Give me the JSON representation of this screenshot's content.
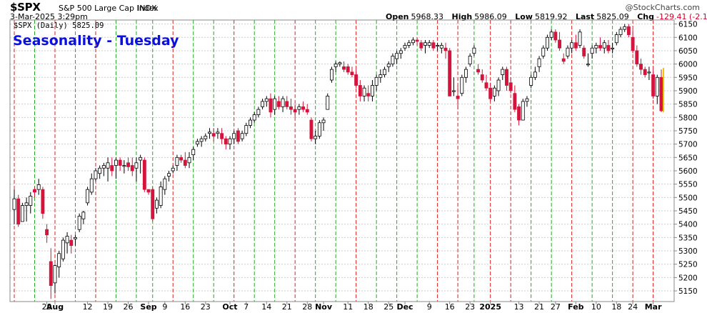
{
  "header": {
    "symbol": "$SPX",
    "full_name": "S&P 500 Large Cap Index",
    "exchange": "INDX",
    "brand": "@StockCharts.com",
    "date": "3-Mar-2025 3:29pm",
    "ohlc": {
      "open_label": "Open",
      "open": "5968.33",
      "high_label": "High",
      "high": "5986.09",
      "low_label": "Low",
      "low": "5819.92",
      "last_label": "Last",
      "last": "5825.09",
      "chg_label": "Chg",
      "chg": "-129.41 (-2.17%)",
      "chg_arrow": "▼"
    }
  },
  "overlay": {
    "title": "Seasonality - Tuesday",
    "title_color": "#0a10e0",
    "legend": "$SPX (Daily) 5825.09"
  },
  "colors": {
    "up_candle_fill": "#ffffff",
    "up_candle_stroke": "#000000",
    "down_candle_fill": "#d4143c",
    "tuesday_up_line": "#22aa22",
    "tuesday_down_line": "#d42020",
    "grid": "#cfcfcf",
    "last_price_highlight": "#f4c400"
  },
  "chart_data": {
    "type": "candlestick",
    "symbol": "$SPX",
    "period": "Daily",
    "ylim": [
      5110,
      6165
    ],
    "y_ticks": [
      5150,
      5200,
      5250,
      5300,
      5350,
      5400,
      5450,
      5500,
      5550,
      5600,
      5650,
      5700,
      5750,
      5800,
      5850,
      5900,
      5950,
      6000,
      6050,
      6100,
      6150
    ],
    "x_labels": [
      {
        "label": "29",
        "idx": 8
      },
      {
        "label": "Aug",
        "idx": 10,
        "bold": true
      },
      {
        "label": "12",
        "idx": 18
      },
      {
        "label": "19",
        "idx": 23
      },
      {
        "label": "26",
        "idx": 28
      },
      {
        "label": "Sep",
        "idx": 33,
        "bold": true
      },
      {
        "label": "9",
        "idx": 37
      },
      {
        "label": "16",
        "idx": 42
      },
      {
        "label": "23",
        "idx": 47
      },
      {
        "label": "Oct",
        "idx": 53,
        "bold": true
      },
      {
        "label": "7",
        "idx": 57
      },
      {
        "label": "14",
        "idx": 62
      },
      {
        "label": "21",
        "idx": 67
      },
      {
        "label": "28",
        "idx": 72
      },
      {
        "label": "Nov",
        "idx": 76,
        "bold": true
      },
      {
        "label": "11",
        "idx": 82
      },
      {
        "label": "18",
        "idx": 87
      },
      {
        "label": "25",
        "idx": 92
      },
      {
        "label": "Dec",
        "idx": 96,
        "bold": true
      },
      {
        "label": "9",
        "idx": 102
      },
      {
        "label": "16",
        "idx": 107
      },
      {
        "label": "23",
        "idx": 112
      },
      {
        "label": "2025",
        "idx": 117,
        "bold": true
      },
      {
        "label": "13",
        "idx": 124
      },
      {
        "label": "21",
        "idx": 129
      },
      {
        "label": "27",
        "idx": 133
      },
      {
        "label": "Feb",
        "idx": 138,
        "bold": true
      },
      {
        "label": "10",
        "idx": 143
      },
      {
        "label": "18",
        "idx": 148
      },
      {
        "label": "24",
        "idx": 152
      },
      {
        "label": "Mar",
        "idx": 157,
        "bold": true
      }
    ],
    "tuesday_lines": [
      {
        "idx": 0,
        "dir": "down"
      },
      {
        "idx": 5,
        "dir": "up"
      },
      {
        "idx": 10,
        "dir": "down"
      },
      {
        "idx": 15,
        "dir": "up"
      },
      {
        "idx": 20,
        "dir": "down"
      },
      {
        "idx": 25,
        "dir": "up"
      },
      {
        "idx": 30,
        "dir": "up"
      },
      {
        "idx": 34,
        "dir": "up"
      },
      {
        "idx": 39,
        "dir": "down"
      },
      {
        "idx": 44,
        "dir": "up"
      },
      {
        "idx": 49,
        "dir": "up"
      },
      {
        "idx": 54,
        "dir": "down"
      },
      {
        "idx": 59,
        "dir": "up"
      },
      {
        "idx": 64,
        "dir": "up"
      },
      {
        "idx": 69,
        "dir": "down"
      },
      {
        "idx": 74,
        "dir": "up"
      },
      {
        "idx": 79,
        "dir": "up"
      },
      {
        "idx": 84,
        "dir": "down"
      },
      {
        "idx": 89,
        "dir": "up"
      },
      {
        "idx": 94,
        "dir": "up"
      },
      {
        "idx": 99,
        "dir": "up"
      },
      {
        "idx": 104,
        "dir": "down"
      },
      {
        "idx": 109,
        "dir": "down"
      },
      {
        "idx": 113,
        "dir": "up"
      },
      {
        "idx": 117,
        "dir": "down"
      },
      {
        "idx": 122,
        "dir": "down"
      },
      {
        "idx": 127,
        "dir": "up"
      },
      {
        "idx": 132,
        "dir": "up"
      },
      {
        "idx": 137,
        "dir": "down"
      },
      {
        "idx": 142,
        "dir": "up"
      },
      {
        "idx": 147,
        "dir": "up"
      },
      {
        "idx": 152,
        "dir": "down"
      },
      {
        "idx": 157,
        "dir": "down"
      }
    ],
    "candles_ohlc": [
      [
        5455,
        5530,
        5400,
        5495
      ],
      [
        5495,
        5510,
        5390,
        5400
      ],
      [
        5410,
        5480,
        5420,
        5470
      ],
      [
        5470,
        5500,
        5410,
        5480
      ],
      [
        5470,
        5520,
        5440,
        5505
      ],
      [
        5530,
        5540,
        5500,
        5520
      ],
      [
        5530,
        5570,
        5510,
        5548
      ],
      [
        5530,
        5540,
        5420,
        5440
      ],
      [
        5380,
        5400,
        5330,
        5360
      ],
      [
        5260,
        5310,
        5120,
        5170
      ],
      [
        5180,
        5250,
        5140,
        5245
      ],
      [
        5240,
        5300,
        5200,
        5290
      ],
      [
        5270,
        5350,
        5260,
        5340
      ],
      [
        5330,
        5370,
        5290,
        5355
      ],
      [
        5340,
        5360,
        5290,
        5320
      ],
      [
        5345,
        5360,
        5320,
        5350
      ],
      [
        5380,
        5440,
        5370,
        5430
      ],
      [
        5420,
        5450,
        5400,
        5445
      ],
      [
        5480,
        5540,
        5470,
        5530
      ],
      [
        5520,
        5590,
        5510,
        5570
      ],
      [
        5570,
        5610,
        5560,
        5600
      ],
      [
        5590,
        5620,
        5570,
        5610
      ],
      [
        5610,
        5630,
        5580,
        5620
      ],
      [
        5610,
        5650,
        5560,
        5630
      ],
      [
        5620,
        5650,
        5580,
        5600
      ],
      [
        5620,
        5650,
        5570,
        5640
      ],
      [
        5640,
        5650,
        5600,
        5620
      ],
      [
        5620,
        5640,
        5590,
        5620
      ],
      [
        5630,
        5650,
        5600,
        5615
      ],
      [
        5620,
        5650,
        5580,
        5600
      ],
      [
        5610,
        5650,
        5560,
        5630
      ],
      [
        5640,
        5660,
        5590,
        5650
      ],
      [
        5640,
        5650,
        5520,
        5530
      ],
      [
        5530,
        5530,
        5510,
        5520
      ],
      [
        5530,
        5540,
        5410,
        5420
      ],
      [
        5460,
        5500,
        5440,
        5490
      ],
      [
        5470,
        5560,
        5460,
        5540
      ],
      [
        5530,
        5580,
        5510,
        5570
      ],
      [
        5580,
        5600,
        5560,
        5590
      ],
      [
        5600,
        5620,
        5590,
        5610
      ],
      [
        5620,
        5660,
        5600,
        5650
      ],
      [
        5650,
        5660,
        5630,
        5640
      ],
      [
        5640,
        5670,
        5610,
        5620
      ],
      [
        5630,
        5670,
        5610,
        5650
      ],
      [
        5660,
        5690,
        5640,
        5680
      ],
      [
        5700,
        5720,
        5690,
        5710
      ],
      [
        5710,
        5730,
        5690,
        5720
      ],
      [
        5720,
        5740,
        5710,
        5730
      ],
      [
        5740,
        5760,
        5720,
        5745
      ],
      [
        5740,
        5760,
        5710,
        5730
      ],
      [
        5740,
        5760,
        5720,
        5745
      ],
      [
        5740,
        5760,
        5700,
        5720
      ],
      [
        5720,
        5730,
        5680,
        5700
      ],
      [
        5700,
        5730,
        5680,
        5720
      ],
      [
        5720,
        5750,
        5700,
        5740
      ],
      [
        5750,
        5760,
        5700,
        5710
      ],
      [
        5720,
        5750,
        5710,
        5740
      ],
      [
        5740,
        5780,
        5730,
        5770
      ],
      [
        5770,
        5800,
        5760,
        5790
      ],
      [
        5790,
        5820,
        5780,
        5810
      ],
      [
        5810,
        5840,
        5800,
        5830
      ],
      [
        5840,
        5870,
        5830,
        5860
      ],
      [
        5860,
        5880,
        5840,
        5870
      ],
      [
        5870,
        5890,
        5800,
        5820
      ],
      [
        5830,
        5880,
        5810,
        5870
      ],
      [
        5860,
        5880,
        5830,
        5840
      ],
      [
        5840,
        5880,
        5820,
        5870
      ],
      [
        5860,
        5880,
        5830,
        5840
      ],
      [
        5840,
        5870,
        5810,
        5830
      ],
      [
        5830,
        5850,
        5800,
        5820
      ],
      [
        5830,
        5850,
        5810,
        5840
      ],
      [
        5840,
        5860,
        5820,
        5830
      ],
      [
        5830,
        5850,
        5810,
        5820
      ],
      [
        5790,
        5800,
        5710,
        5720
      ],
      [
        5720,
        5750,
        5700,
        5730
      ],
      [
        5730,
        5790,
        5720,
        5780
      ],
      [
        5780,
        5800,
        5750,
        5790
      ],
      [
        5830,
        5890,
        5830,
        5880
      ],
      [
        5940,
        5990,
        5930,
        5980
      ],
      [
        5990,
        6010,
        5970,
        6000
      ],
      [
        6000,
        6010,
        5990,
        6005
      ],
      [
        5990,
        6010,
        5970,
        5980
      ],
      [
        5990,
        6000,
        5960,
        5970
      ],
      [
        5970,
        5990,
        5950,
        5960
      ],
      [
        5960,
        5980,
        5910,
        5920
      ],
      [
        5920,
        5940,
        5860,
        5880
      ],
      [
        5880,
        5920,
        5860,
        5910
      ],
      [
        5890,
        5920,
        5860,
        5880
      ],
      [
        5880,
        5940,
        5860,
        5920
      ],
      [
        5920,
        5960,
        5900,
        5950
      ],
      [
        5950,
        5980,
        5930,
        5960
      ],
      [
        5960,
        5990,
        5950,
        5980
      ],
      [
        5990,
        6010,
        5970,
        6000
      ],
      [
        6000,
        6040,
        5990,
        6030
      ],
      [
        6020,
        6050,
        6000,
        6040
      ],
      [
        6040,
        6060,
        6020,
        6050
      ],
      [
        6060,
        6080,
        6050,
        6070
      ],
      [
        6070,
        6090,
        6060,
        6080
      ],
      [
        6080,
        6100,
        6070,
        6090
      ],
      [
        6090,
        6100,
        6070,
        6085
      ],
      [
        6080,
        6090,
        6050,
        6060
      ],
      [
        6070,
        6090,
        6040,
        6080
      ],
      [
        6070,
        6090,
        6060,
        6080
      ],
      [
        6080,
        6090,
        6050,
        6060
      ],
      [
        6070,
        6080,
        6050,
        6070
      ],
      [
        6060,
        6080,
        6040,
        6070
      ],
      [
        6060,
        6080,
        6020,
        6050
      ],
      [
        6050,
        6060,
        5880,
        5880
      ],
      [
        5900,
        5950,
        5880,
        5900
      ],
      [
        5880,
        5920,
        5830,
        5870
      ],
      [
        5890,
        5960,
        5880,
        5950
      ],
      [
        5950,
        5990,
        5930,
        5980
      ],
      [
        6000,
        6040,
        5990,
        6030
      ],
      [
        6040,
        6070,
        6030,
        6060
      ],
      [
        5980,
        6000,
        5960,
        5970
      ],
      [
        5960,
        5980,
        5930,
        5940
      ],
      [
        5930,
        5960,
        5900,
        5910
      ],
      [
        5910,
        5930,
        5860,
        5870
      ],
      [
        5880,
        5920,
        5860,
        5910
      ],
      [
        5900,
        5950,
        5880,
        5940
      ],
      [
        5960,
        5990,
        5940,
        5980
      ],
      [
        5980,
        5990,
        5900,
        5920
      ],
      [
        5930,
        5950,
        5890,
        5900
      ],
      [
        5890,
        5920,
        5820,
        5830
      ],
      [
        5840,
        5850,
        5770,
        5790
      ],
      [
        5790,
        5870,
        5790,
        5860
      ],
      [
        5860,
        5880,
        5840,
        5870
      ],
      [
        5920,
        5960,
        5910,
        5950
      ],
      [
        5950,
        5990,
        5940,
        5970
      ],
      [
        5990,
        6030,
        5970,
        6020
      ],
      [
        6030,
        6070,
        6020,
        6060
      ],
      [
        6060,
        6110,
        6050,
        6100
      ],
      [
        6100,
        6130,
        6090,
        6120
      ],
      [
        6120,
        6130,
        6080,
        6090
      ],
      [
        6090,
        6120,
        6050,
        6060
      ],
      [
        6020,
        6040,
        6000,
        6010
      ],
      [
        6030,
        6070,
        6020,
        6060
      ],
      [
        6060,
        6090,
        6040,
        6080
      ],
      [
        6080,
        6110,
        6050,
        6060
      ],
      [
        6070,
        6130,
        6060,
        6120
      ],
      [
        6060,
        6070,
        6020,
        6030
      ],
      [
        6000,
        6040,
        5990,
        6000
      ],
      [
        6040,
        6070,
        6020,
        6060
      ],
      [
        6060,
        6080,
        6040,
        6070
      ],
      [
        6070,
        6100,
        6050,
        6060
      ],
      [
        6060,
        6090,
        6040,
        6080
      ],
      [
        6070,
        6090,
        6040,
        6050
      ],
      [
        6060,
        6080,
        6040,
        6060
      ],
      [
        6080,
        6120,
        6070,
        6110
      ],
      [
        6110,
        6140,
        6100,
        6130
      ],
      [
        6130,
        6150,
        6120,
        6140
      ],
      [
        6140,
        6150,
        6100,
        6110
      ],
      [
        6100,
        6130,
        6040,
        6050
      ],
      [
        6050,
        6070,
        5990,
        6000
      ],
      [
        6000,
        6020,
        5960,
        5980
      ],
      [
        5980,
        5990,
        5950,
        5960
      ],
      [
        5970,
        5990,
        5940,
        5970
      ],
      [
        5960,
        5980,
        5870,
        5880
      ],
      [
        5880,
        5960,
        5850,
        5950
      ],
      [
        5950,
        5980,
        5820,
        5825
      ]
    ]
  }
}
